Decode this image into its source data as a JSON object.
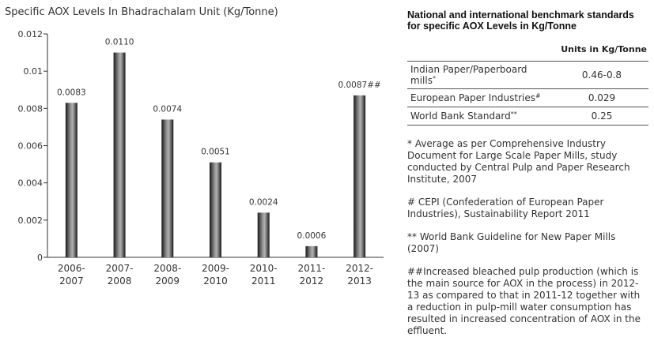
{
  "chart_data": {
    "type": "bar",
    "title": "Specific AOX Levels In Bhadrachalam Unit (Kg/Tonne)",
    "categories": [
      "2006-\n2007",
      "2007-\n2008",
      "2008-\n2009",
      "2009-\n2010",
      "2010-\n2011",
      "2011-\n2012",
      "2012-\n2013"
    ],
    "values": [
      0.0083,
      0.011,
      0.0074,
      0.0051,
      0.0024,
      0.0006,
      0.0087
    ],
    "value_labels": [
      "0.0083",
      "0.0110",
      "0.0074",
      "0.0051",
      "0.0024",
      "0.0006",
      "0.0087##"
    ],
    "yticks": [
      "0",
      "0.002",
      "0.004",
      "0.006",
      "0.008",
      "0.01",
      "0.012"
    ],
    "ylim": [
      0,
      0.012
    ],
    "xlabel": "",
    "ylabel": "",
    "grid": false,
    "bar_color": "#2a2a2a"
  },
  "benchmark": {
    "title": "National and international benchmark standards for specific AOX Levels in Kg/Tonne",
    "units": "Units in Kg/Tonne",
    "rows": [
      {
        "label": "Indian Paper/Paperboard mills",
        "mark": "*",
        "value": "0.46-0.8"
      },
      {
        "label": "European Paper Industries",
        "mark": "#",
        "value": "0.029"
      },
      {
        "label": "World Bank Standard",
        "mark": "**",
        "value": "0.25"
      }
    ]
  },
  "notes": {
    "note1": "* Average as per Comprehensive Industry Document for Large Scale Paper Mills, study conducted by Central Pulp and Paper Research Institute, 2007",
    "note2": "# CEPI (Confederation of European Paper Industries), Sustainability Report 2011",
    "note3": "** World Bank Guideline for New Paper Mills (2007)",
    "note4": "##Increased bleached pulp production (which is the main source for AOX in the process) in 2012-13 as compared to that in 2011-12 together with a reduction in pulp-mill water consumption has resulted in increased concentration of AOX in the effluent."
  }
}
